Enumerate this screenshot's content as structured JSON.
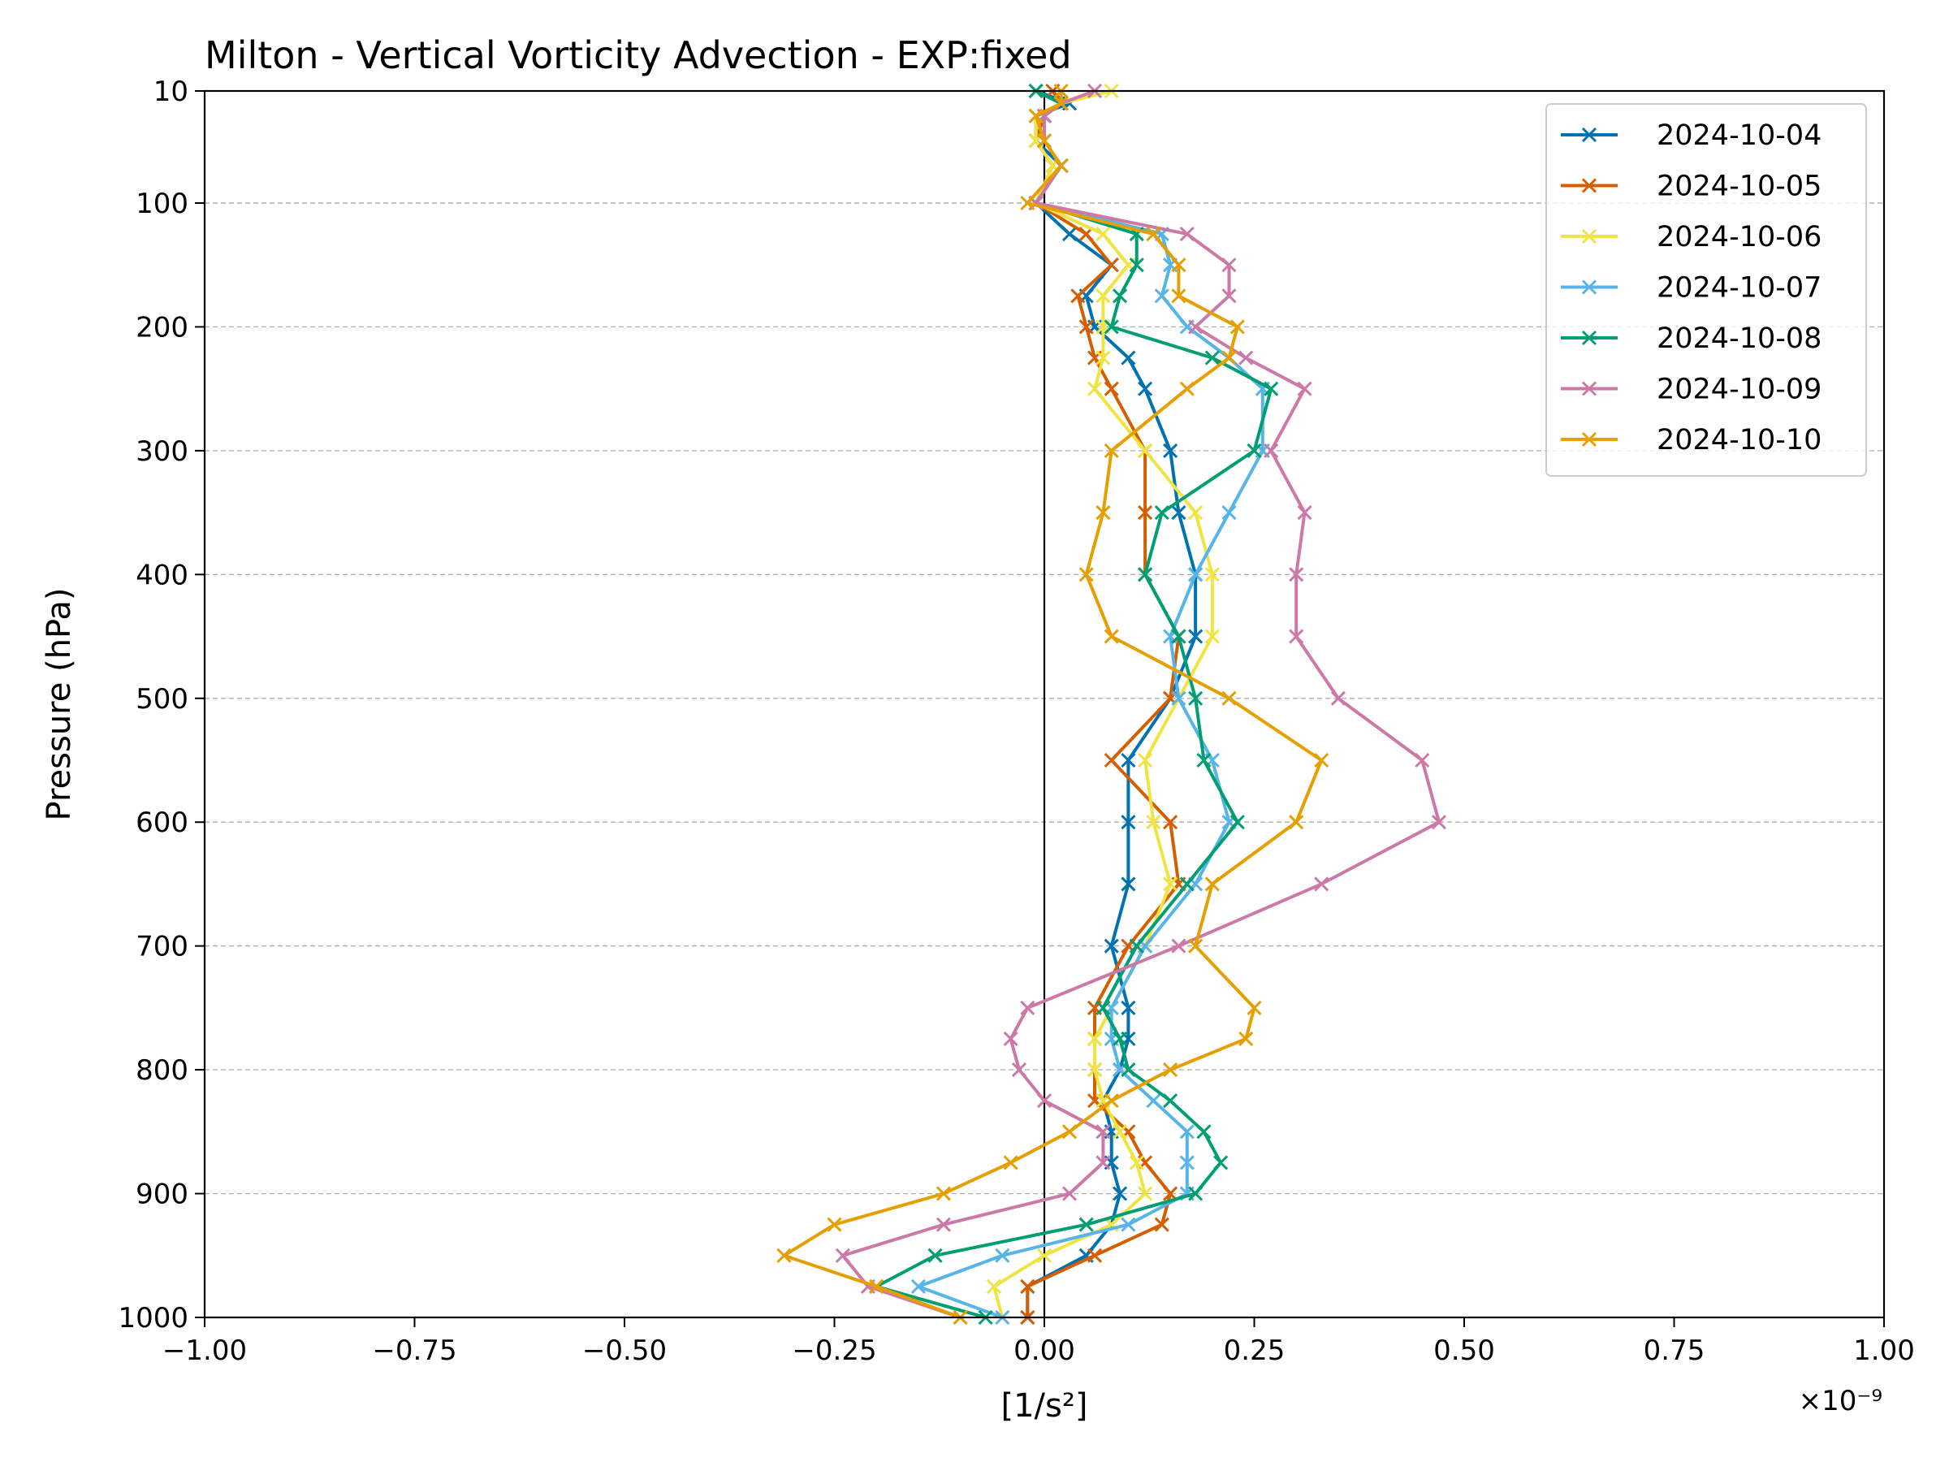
{
  "chart_data": {
    "type": "line",
    "title": "Milton - Vertical Vorticity Advection - EXP:fixed",
    "xlabel": "[1/s²]",
    "ylabel": "Pressure (hPa)",
    "x_offset_text": "×10⁻⁹",
    "xlim": [
      -1.0,
      1.0
    ],
    "ylim": [
      1000,
      10
    ],
    "y_scale": "piecewise: 10–100 compressed, 100–1000 linear",
    "x_ticks": [
      -1.0,
      -0.75,
      -0.5,
      -0.25,
      0.0,
      0.25,
      0.5,
      0.75,
      1.0
    ],
    "x_tick_labels": [
      "−1.00",
      "−0.75",
      "−0.50",
      "−0.25",
      "0.00",
      "0.25",
      "0.50",
      "0.75",
      "1.00"
    ],
    "y_ticks": [
      10,
      100,
      200,
      300,
      400,
      500,
      600,
      700,
      800,
      900,
      1000
    ],
    "y_tick_labels": [
      "10",
      "100",
      "200",
      "300",
      "400",
      "500",
      "600",
      "700",
      "800",
      "900",
      "1000"
    ],
    "grid": "horizontal dashed",
    "legend_position": "top-right",
    "pressure_levels": [
      10,
      20,
      30,
      50,
      70,
      100,
      125,
      150,
      175,
      200,
      225,
      250,
      300,
      350,
      400,
      450,
      500,
      550,
      600,
      650,
      700,
      750,
      775,
      800,
      825,
      850,
      875,
      900,
      925,
      950,
      975,
      1000
    ],
    "series": [
      {
        "name": "2024-10-04",
        "color": "#0072b2",
        "values": [
          -0.01,
          0.03,
          -0.01,
          -0.01,
          0.02,
          -0.01,
          0.03,
          0.08,
          0.05,
          0.06,
          0.1,
          0.12,
          0.15,
          0.16,
          0.18,
          0.18,
          0.15,
          0.1,
          0.1,
          0.1,
          0.08,
          0.1,
          0.1,
          0.09,
          0.07,
          0.08,
          0.08,
          0.09,
          0.08,
          0.05,
          -0.02,
          -0.02
        ]
      },
      {
        "name": "2024-10-05",
        "color": "#d55e00",
        "values": [
          0.01,
          0.02,
          0.0,
          -0.01,
          0.01,
          -0.01,
          0.05,
          0.08,
          0.04,
          0.05,
          0.06,
          0.08,
          0.12,
          0.12,
          0.12,
          0.16,
          0.15,
          0.08,
          0.15,
          0.16,
          0.1,
          0.06,
          0.06,
          0.06,
          0.06,
          0.1,
          0.12,
          0.15,
          0.14,
          0.06,
          -0.02,
          -0.02
        ]
      },
      {
        "name": "2024-10-06",
        "color": "#f0e442",
        "values": [
          0.08,
          0.02,
          -0.01,
          -0.01,
          0.01,
          -0.01,
          0.07,
          0.1,
          0.07,
          0.07,
          0.07,
          0.06,
          0.12,
          0.18,
          0.2,
          0.2,
          0.16,
          0.12,
          0.13,
          0.15,
          0.12,
          0.08,
          0.06,
          0.06,
          0.07,
          0.09,
          0.11,
          0.12,
          0.08,
          0.0,
          -0.06,
          -0.05
        ]
      },
      {
        "name": "2024-10-07",
        "color": "#56b4e9",
        "values": [
          -0.01,
          0.02,
          0.0,
          0.0,
          0.02,
          -0.01,
          0.14,
          0.15,
          0.14,
          0.17,
          0.22,
          0.26,
          0.26,
          0.22,
          0.18,
          0.15,
          0.16,
          0.2,
          0.22,
          0.18,
          0.12,
          0.08,
          0.08,
          0.09,
          0.13,
          0.17,
          0.17,
          0.17,
          0.1,
          -0.05,
          -0.15,
          -0.05
        ]
      },
      {
        "name": "2024-10-08",
        "color": "#009e73",
        "values": [
          -0.01,
          0.02,
          0.0,
          0.0,
          0.02,
          -0.01,
          0.11,
          0.11,
          0.09,
          0.08,
          0.2,
          0.27,
          0.25,
          0.14,
          0.12,
          0.16,
          0.18,
          0.19,
          0.23,
          0.17,
          0.11,
          0.07,
          0.09,
          0.1,
          0.15,
          0.19,
          0.21,
          0.18,
          0.05,
          -0.13,
          -0.2,
          -0.07
        ]
      },
      {
        "name": "2024-10-09",
        "color": "#cc79a7",
        "values": [
          0.06,
          0.02,
          0.0,
          0.0,
          0.02,
          -0.01,
          0.17,
          0.22,
          0.22,
          0.18,
          0.24,
          0.31,
          0.27,
          0.31,
          0.3,
          0.3,
          0.35,
          0.45,
          0.47,
          0.33,
          0.16,
          -0.02,
          -0.04,
          -0.03,
          0.0,
          0.07,
          0.07,
          0.03,
          -0.12,
          -0.24,
          -0.21,
          -0.1
        ]
      },
      {
        "name": "2024-10-10",
        "color": "#e69f00",
        "values": [
          0.02,
          0.02,
          -0.01,
          0.0,
          0.02,
          -0.02,
          0.13,
          0.16,
          0.16,
          0.23,
          0.22,
          0.17,
          0.08,
          0.07,
          0.05,
          0.08,
          0.22,
          0.33,
          0.3,
          0.2,
          0.18,
          0.25,
          0.24,
          0.15,
          0.08,
          0.03,
          -0.04,
          -0.12,
          -0.25,
          -0.31,
          -0.2,
          -0.1
        ]
      }
    ]
  }
}
